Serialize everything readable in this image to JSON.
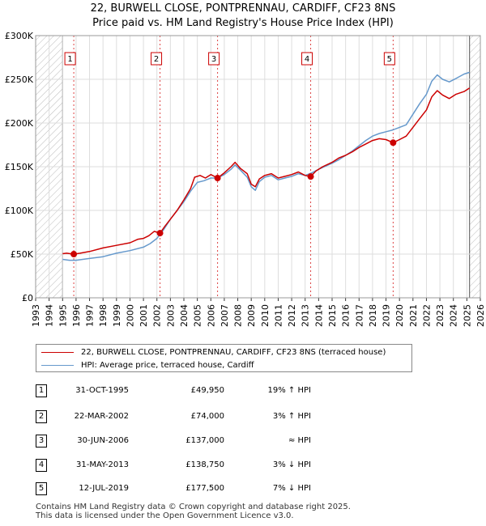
{
  "chart_data": {
    "type": "line",
    "title": "22, BURWELL CLOSE, PONTPRENNAU, CARDIFF, CF23 8NS",
    "subtitle": "Price paid vs. HM Land Registry's House Price Index (HPI)",
    "xlim": [
      1993.0,
      2026.0
    ],
    "ylim": [
      0,
      300000
    ],
    "x_ticks": [
      "1993",
      "1994",
      "1995",
      "1996",
      "1997",
      "1998",
      "1999",
      "2000",
      "2001",
      "2002",
      "2003",
      "2004",
      "2005",
      "2006",
      "2007",
      "2008",
      "2009",
      "2010",
      "2011",
      "2012",
      "2013",
      "2014",
      "2015",
      "2016",
      "2017",
      "2018",
      "2019",
      "2020",
      "2021",
      "2022",
      "2023",
      "2024",
      "2025",
      "2026"
    ],
    "y_ticks": [
      {
        "value": 0,
        "label": "£0"
      },
      {
        "value": 50000,
        "label": "£50K"
      },
      {
        "value": 100000,
        "label": "£100K"
      },
      {
        "value": 150000,
        "label": "£150K"
      },
      {
        "value": 200000,
        "label": "£200K"
      },
      {
        "value": 250000,
        "label": "£250K"
      },
      {
        "value": 300000,
        "label": "£300K"
      }
    ],
    "grid": true,
    "hatched_ranges": [
      [
        1993.0,
        1995.0
      ],
      [
        2025.2,
        2026.0
      ]
    ],
    "series": [
      {
        "name": "22, BURWELL CLOSE, PONTPRENNAU, CARDIFF, CF23 8NS (terraced house)",
        "color": "#cc0000",
        "points": [
          [
            1995.0,
            50500
          ],
          [
            1995.3,
            51000
          ],
          [
            1995.83,
            49950
          ],
          [
            1996.3,
            51000
          ],
          [
            1997.0,
            53000
          ],
          [
            1998.0,
            57000
          ],
          [
            1999.0,
            60000
          ],
          [
            2000.0,
            63000
          ],
          [
            2000.6,
            67000
          ],
          [
            2001.0,
            68000
          ],
          [
            2001.4,
            71000
          ],
          [
            2001.8,
            76000
          ],
          [
            2002.23,
            74000
          ],
          [
            2002.6,
            82000
          ],
          [
            2003.0,
            90000
          ],
          [
            2003.5,
            100000
          ],
          [
            2004.0,
            112000
          ],
          [
            2004.5,
            125000
          ],
          [
            2004.8,
            138000
          ],
          [
            2005.2,
            140000
          ],
          [
            2005.6,
            137000
          ],
          [
            2006.0,
            141000
          ],
          [
            2006.5,
            137000
          ],
          [
            2007.0,
            143000
          ],
          [
            2007.5,
            150000
          ],
          [
            2007.8,
            155000
          ],
          [
            2008.2,
            148000
          ],
          [
            2008.7,
            142000
          ],
          [
            2009.0,
            130000
          ],
          [
            2009.3,
            127000
          ],
          [
            2009.6,
            136000
          ],
          [
            2010.0,
            140000
          ],
          [
            2010.5,
            142000
          ],
          [
            2011.0,
            137000
          ],
          [
            2011.5,
            139000
          ],
          [
            2012.0,
            141000
          ],
          [
            2012.5,
            144000
          ],
          [
            2013.0,
            140000
          ],
          [
            2013.41,
            138750
          ],
          [
            2013.8,
            145000
          ],
          [
            2014.3,
            150000
          ],
          [
            2015.0,
            155000
          ],
          [
            2015.5,
            160000
          ],
          [
            2016.0,
            163000
          ],
          [
            2016.5,
            167000
          ],
          [
            2017.0,
            172000
          ],
          [
            2017.5,
            176000
          ],
          [
            2018.0,
            180000
          ],
          [
            2018.5,
            182000
          ],
          [
            2019.0,
            181000
          ],
          [
            2019.53,
            177500
          ],
          [
            2020.0,
            181000
          ],
          [
            2020.5,
            185000
          ],
          [
            2021.0,
            195000
          ],
          [
            2021.5,
            205000
          ],
          [
            2022.0,
            215000
          ],
          [
            2022.4,
            230000
          ],
          [
            2022.8,
            237000
          ],
          [
            2023.2,
            232000
          ],
          [
            2023.7,
            228000
          ],
          [
            2024.2,
            233000
          ],
          [
            2024.8,
            236000
          ],
          [
            2025.2,
            240000
          ]
        ]
      },
      {
        "name": "HPI: Average price, terraced house, Cardiff",
        "color": "#6699cc",
        "points": [
          [
            1995.0,
            44000
          ],
          [
            1995.5,
            43000
          ],
          [
            1996.0,
            43000
          ],
          [
            1997.0,
            45000
          ],
          [
            1998.0,
            47000
          ],
          [
            1999.0,
            51000
          ],
          [
            2000.0,
            54000
          ],
          [
            2001.0,
            58000
          ],
          [
            2001.5,
            62000
          ],
          [
            2002.0,
            68000
          ],
          [
            2002.5,
            78000
          ],
          [
            2003.0,
            90000
          ],
          [
            2003.5,
            100000
          ],
          [
            2004.0,
            110000
          ],
          [
            2004.5,
            122000
          ],
          [
            2005.0,
            132000
          ],
          [
            2005.5,
            134000
          ],
          [
            2006.0,
            137000
          ],
          [
            2006.5,
            137000
          ],
          [
            2007.0,
            141000
          ],
          [
            2007.5,
            147000
          ],
          [
            2007.8,
            152000
          ],
          [
            2008.2,
            146000
          ],
          [
            2008.7,
            138000
          ],
          [
            2009.0,
            127000
          ],
          [
            2009.3,
            123000
          ],
          [
            2009.6,
            133000
          ],
          [
            2010.0,
            138000
          ],
          [
            2010.5,
            140000
          ],
          [
            2011.0,
            135000
          ],
          [
            2011.5,
            137000
          ],
          [
            2012.0,
            139000
          ],
          [
            2012.5,
            142000
          ],
          [
            2013.0,
            140000
          ],
          [
            2013.5,
            143000
          ],
          [
            2014.0,
            147000
          ],
          [
            2015.0,
            154000
          ],
          [
            2015.5,
            158000
          ],
          [
            2016.0,
            163000
          ],
          [
            2016.5,
            168000
          ],
          [
            2017.0,
            174000
          ],
          [
            2017.5,
            180000
          ],
          [
            2018.0,
            185000
          ],
          [
            2018.5,
            188000
          ],
          [
            2019.0,
            190000
          ],
          [
            2019.5,
            192000
          ],
          [
            2020.0,
            195000
          ],
          [
            2020.5,
            198000
          ],
          [
            2021.0,
            210000
          ],
          [
            2021.5,
            222000
          ],
          [
            2022.0,
            233000
          ],
          [
            2022.4,
            248000
          ],
          [
            2022.8,
            255000
          ],
          [
            2023.2,
            250000
          ],
          [
            2023.7,
            247000
          ],
          [
            2024.2,
            251000
          ],
          [
            2024.8,
            256000
          ],
          [
            2025.2,
            258000
          ]
        ]
      }
    ],
    "sales": [
      {
        "n": "1",
        "x": 1995.83,
        "price": 49950
      },
      {
        "n": "2",
        "x": 2002.23,
        "price": 74000
      },
      {
        "n": "3",
        "x": 2006.5,
        "price": 137000
      },
      {
        "n": "4",
        "x": 2013.41,
        "price": 138750
      },
      {
        "n": "5",
        "x": 2019.53,
        "price": 177500
      }
    ]
  },
  "legend": {
    "property_label": "22, BURWELL CLOSE, PONTPRENNAU, CARDIFF, CF23 8NS (terraced house)",
    "hpi_label": "HPI: Average price, terraced house, Cardiff",
    "property_color": "#cc0000",
    "hpi_color": "#6699cc"
  },
  "transactions": [
    {
      "n": "1",
      "date": "31-OCT-1995",
      "price": "£49,950",
      "hpi": "19% ↑ HPI"
    },
    {
      "n": "2",
      "date": "22-MAR-2002",
      "price": "£74,000",
      "hpi": "3% ↑ HPI"
    },
    {
      "n": "3",
      "date": "30-JUN-2006",
      "price": "£137,000",
      "hpi": "≈ HPI"
    },
    {
      "n": "4",
      "date": "31-MAY-2013",
      "price": "£138,750",
      "hpi": "3% ↓ HPI"
    },
    {
      "n": "5",
      "date": "12-JUL-2019",
      "price": "£177,500",
      "hpi": "7% ↓ HPI"
    }
  ],
  "footer": {
    "line1": "Contains HM Land Registry data © Crown copyright and database right 2025.",
    "line2": "This data is licensed under the Open Government Licence v3.0."
  }
}
